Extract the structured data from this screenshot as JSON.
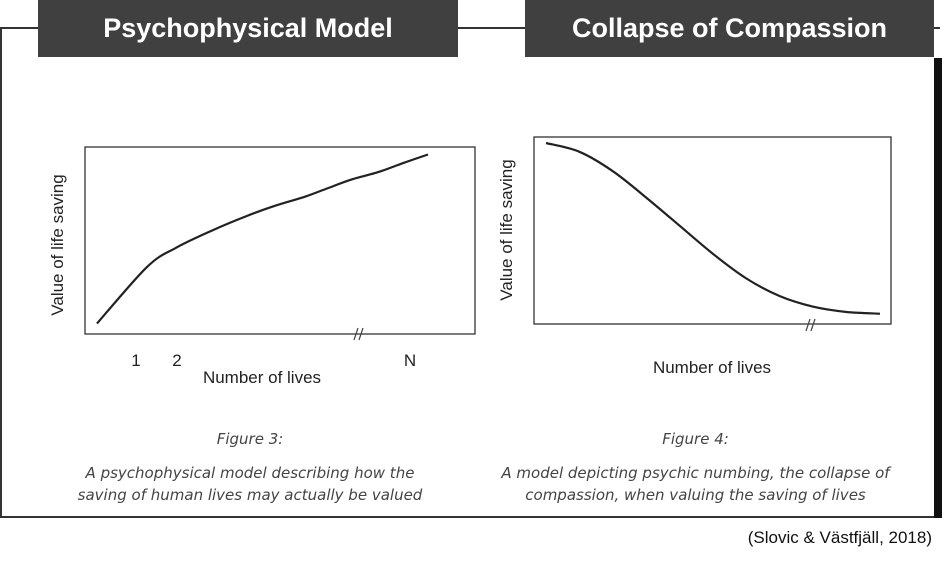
{
  "headers": {
    "left": "Psychophysical Model",
    "right": "Collapse of Compassion"
  },
  "chart_data": [
    {
      "type": "line",
      "title": "",
      "ylabel": "Value of life saving",
      "xlabel": "Number of lives",
      "x_tick_labels": [
        "1",
        "2",
        "N"
      ],
      "axis_break": "//",
      "curve_shape": "concave increasing (logarithmic-like)",
      "series": [
        {
          "x": [
            1,
            2,
            3,
            5,
            8,
            12,
            18,
            25,
            35,
            50,
            70,
            100
          ],
          "y": [
            0.02,
            0.34,
            0.45,
            0.55,
            0.63,
            0.69,
            0.74,
            0.79,
            0.84,
            0.88,
            0.93,
            0.98
          ]
        }
      ],
      "caption_title": "Figure 3:",
      "caption_text": [
        "A psychophysical model describing how the",
        "saving of human lives may actually be valued"
      ]
    },
    {
      "type": "line",
      "title": "",
      "ylabel": "Value of life saving",
      "xlabel": "Number of lives",
      "axis_break": "//",
      "curve_shape": "decreasing sigmoid",
      "series": [
        {
          "x": [
            0.0,
            0.1,
            0.2,
            0.3,
            0.4,
            0.5,
            0.6,
            0.7,
            0.8,
            0.9,
            1.0
          ],
          "y": [
            1.0,
            0.95,
            0.84,
            0.69,
            0.53,
            0.37,
            0.23,
            0.13,
            0.07,
            0.04,
            0.03
          ]
        }
      ],
      "caption_title": "Figure 4:",
      "caption_text": [
        "A model depicting psychic numbing, the collapse of",
        "compassion, when valuing the saving of lives"
      ]
    }
  ],
  "citation": "(Slovic & Västfjäll, 2018)"
}
